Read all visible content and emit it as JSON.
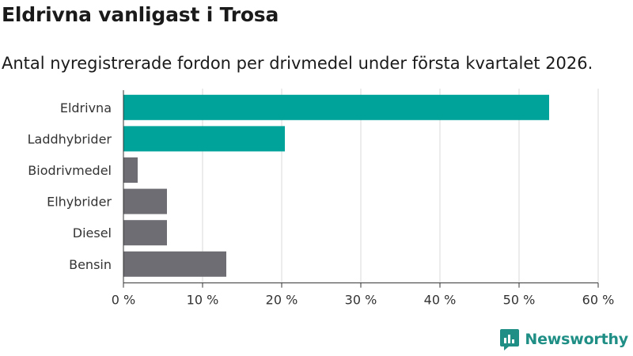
{
  "header": {
    "title": "Eldrivna vanligast i Trosa",
    "subtitle": "Antal nyregistrerade fordon per drivmedel under första kvartalet 2026."
  },
  "logo": {
    "text": "Newsworthy",
    "icon": "newsworthy-logo-icon"
  },
  "colors": {
    "highlight": "#00a39a",
    "default": "#6e6d73",
    "grid": "#d9d9d9",
    "logo": "#1f8f86"
  },
  "chart_data": {
    "type": "bar",
    "orientation": "horizontal",
    "title": "Eldrivna vanligast i Trosa",
    "subtitle": "Antal nyregistrerade fordon per drivmedel under första kvartalet 2026.",
    "categories": [
      "Eldrivna",
      "Laddhybrider",
      "Biodrivmedel",
      "Elhybrider",
      "Diesel",
      "Bensin"
    ],
    "values": [
      53.8,
      20.4,
      1.8,
      5.5,
      5.5,
      13.0
    ],
    "highlighted": [
      true,
      true,
      false,
      false,
      false,
      false
    ],
    "xlim": [
      0,
      60
    ],
    "xticks": [
      "0 %",
      "10 %",
      "20 %",
      "30 %",
      "40 %",
      "50 %",
      "60 %"
    ],
    "xlabel": "",
    "ylabel": "",
    "grid": true
  }
}
